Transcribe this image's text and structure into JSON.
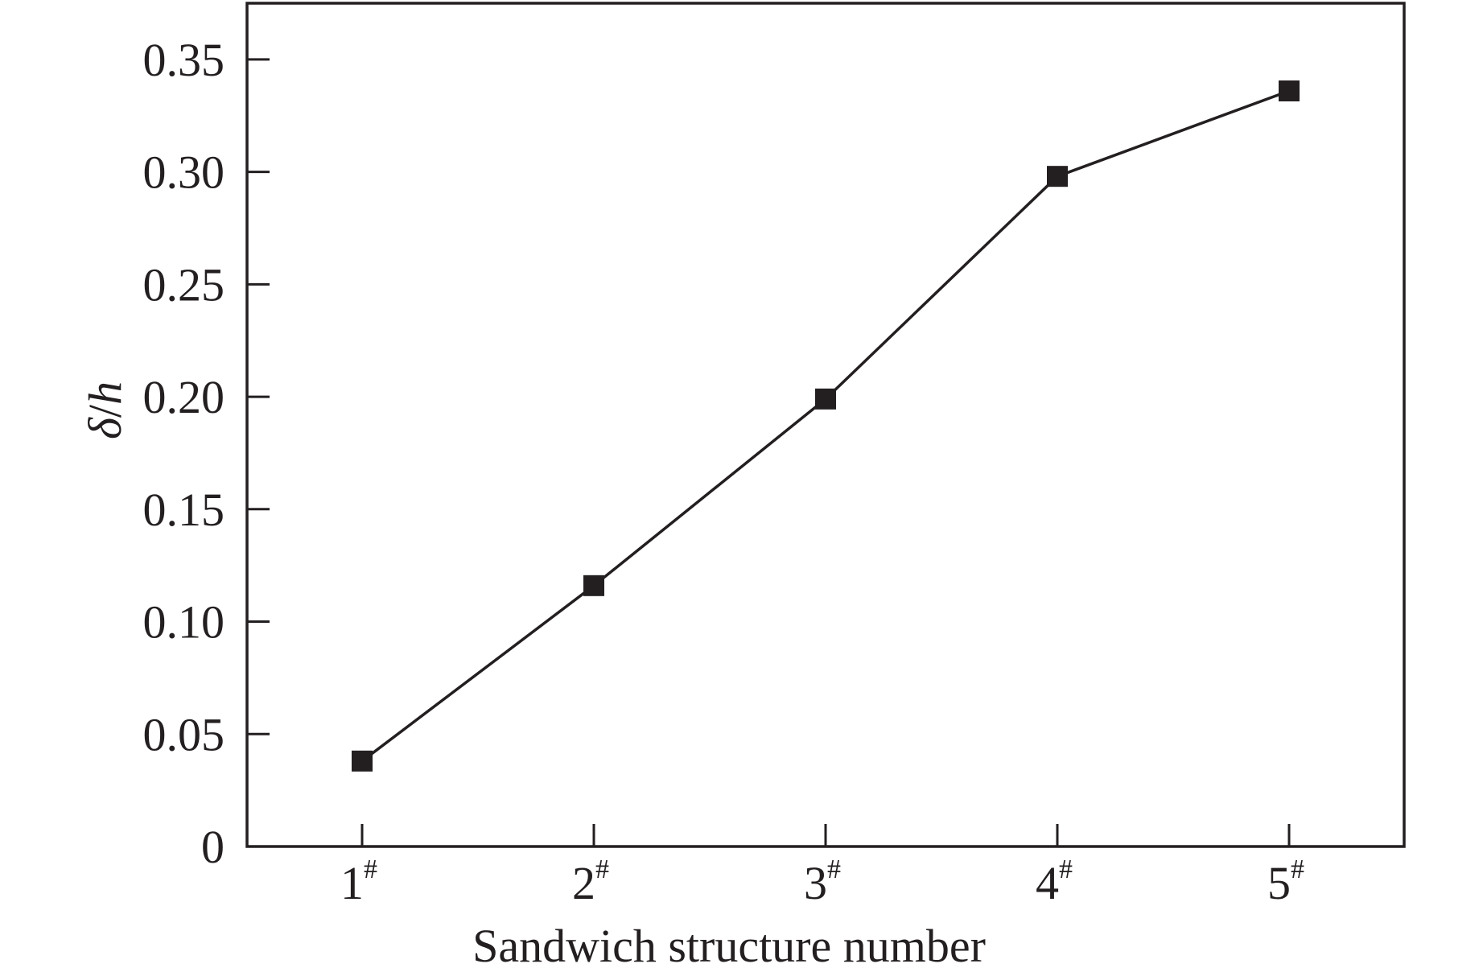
{
  "chart_data": {
    "type": "line",
    "title": "",
    "xlabel": "Sandwich structure number",
    "ylabel_symbol": "δ",
    "ylabel_slash": "/",
    "ylabel_var": "h",
    "categories": [
      {
        "num": "1",
        "sup": "#"
      },
      {
        "num": "2",
        "sup": "#"
      },
      {
        "num": "3",
        "sup": "#"
      },
      {
        "num": "4",
        "sup": "#"
      },
      {
        "num": "5",
        "sup": "#"
      }
    ],
    "series": [
      {
        "values": [
          0.038,
          0.116,
          0.199,
          0.298,
          0.336
        ]
      }
    ],
    "ylim": [
      0,
      0.375
    ],
    "yticks": [
      0,
      0.05,
      0.1,
      0.15,
      0.2,
      0.25,
      0.3,
      0.35
    ],
    "ytick_labels": [
      "0",
      "0.05",
      "0.10",
      "0.15",
      "0.20",
      "0.25",
      "0.30",
      "0.35"
    ],
    "grid": false,
    "marker": "square",
    "colors": {
      "line": "#231f20",
      "marker": "#231f20",
      "axis": "#231f20"
    }
  }
}
